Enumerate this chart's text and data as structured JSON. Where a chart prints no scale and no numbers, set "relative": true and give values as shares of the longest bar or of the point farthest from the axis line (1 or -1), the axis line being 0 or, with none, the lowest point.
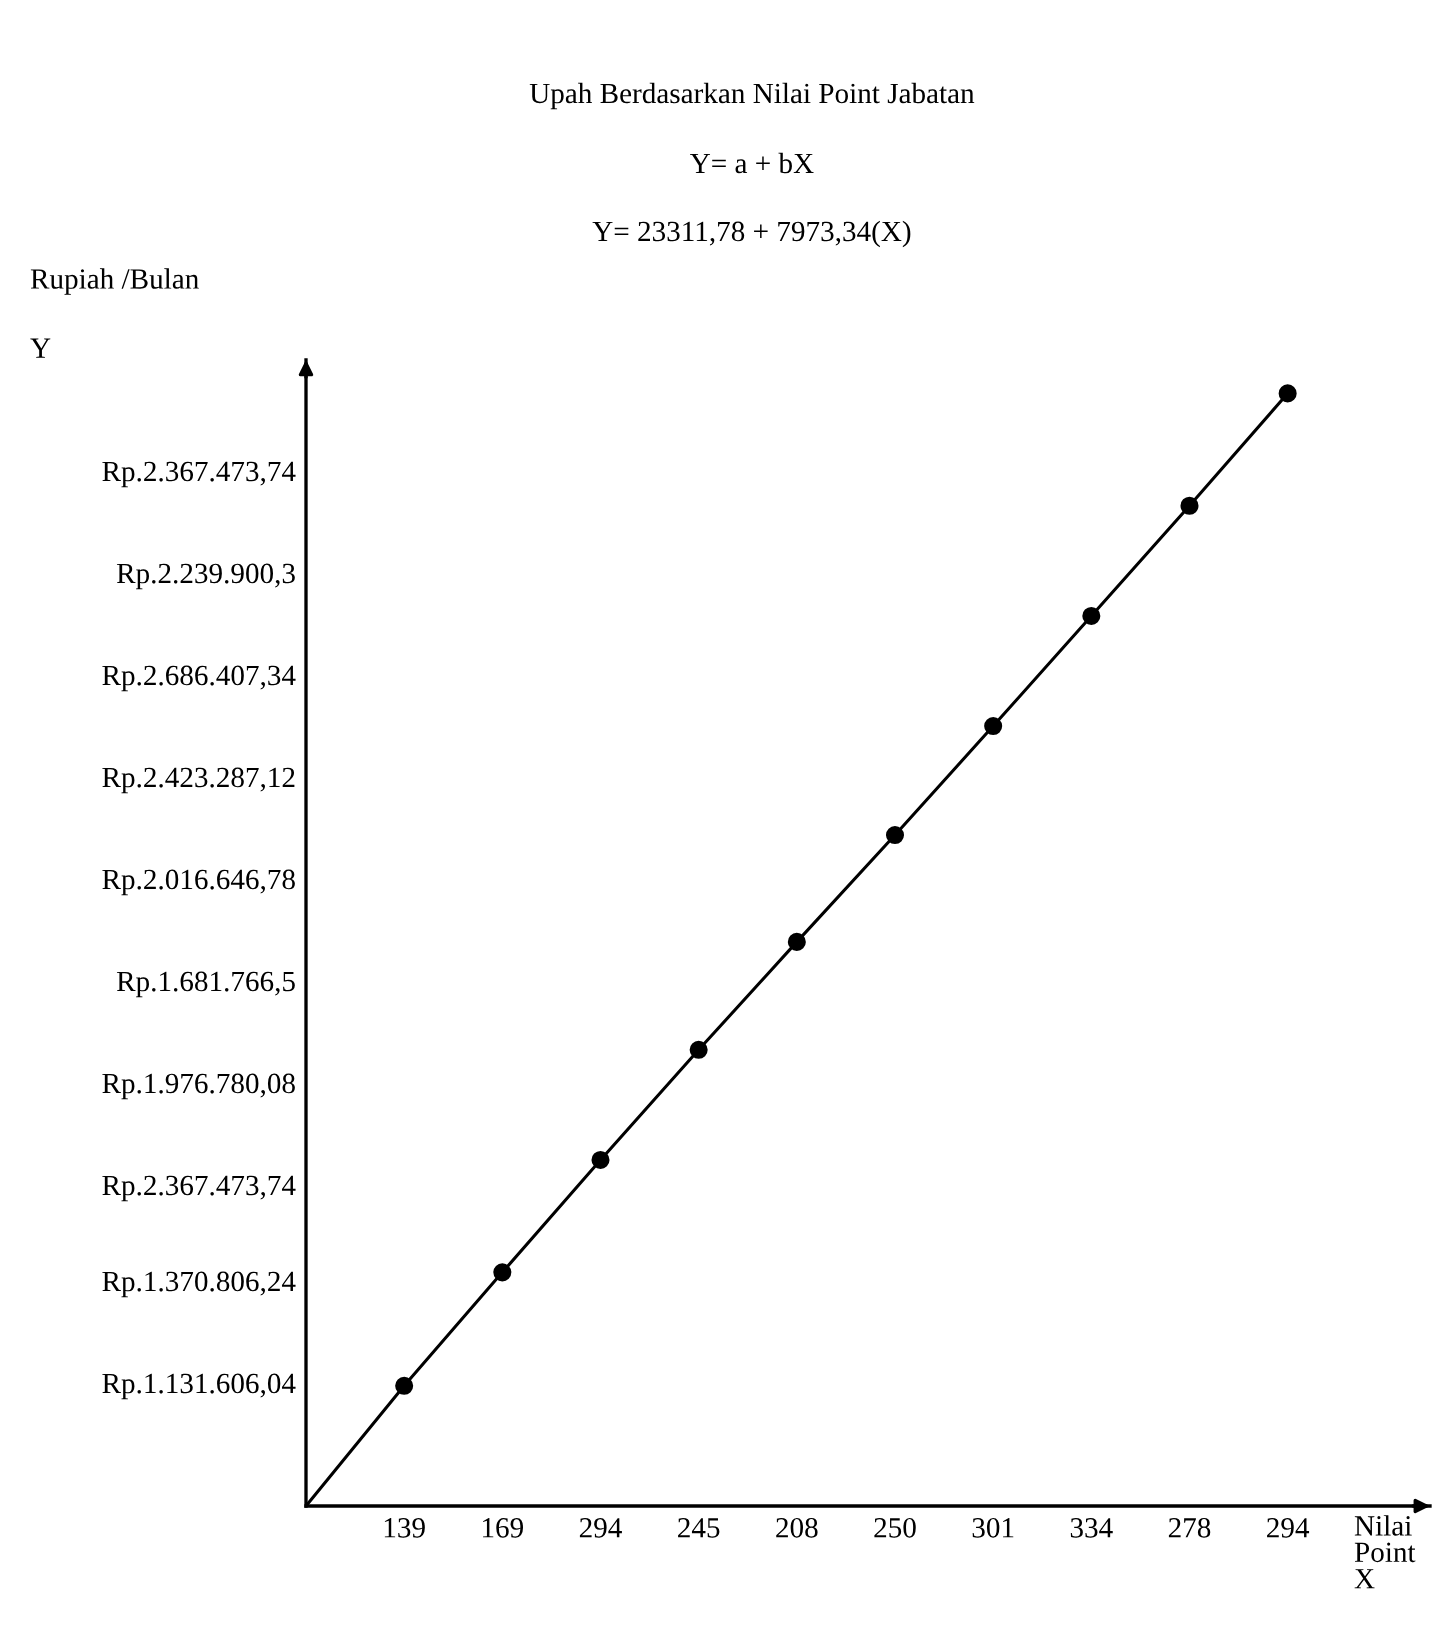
{
  "chart_data": {
    "type": "line",
    "title": "Upah Berdasarkan Nilai Point Jabatan",
    "subtitle": "Y= a + bX",
    "annotations": [
      "Y= 23311,78 + 7973,34(X)",
      "Rp.1.131.606,04",
      "Rp.1.370.806,24",
      "Rp.2.367.473,74",
      "Rp.1.976.780,08",
      "Rp.1.681.766,5",
      "Rp.2.016.646,78",
      "Rp.2.423.287,12",
      "Rp.2.686.407,34",
      "Rp.2.239.900,3",
      "Rp.2.367.473,74"
    ],
    "xlabel": "Nilai\nPoint\nX",
    "ylabel": "Rupiah /Bulan\n\nY",
    "categories": [
      null,
      "139",
      "169",
      "294",
      "245",
      "208",
      "250",
      "301",
      "334",
      "278",
      "294"
    ],
    "relative": true,
    "series": [
      {
        "color": "#000000",
        "values": [
          0,
          0.108,
          0.21,
          0.311,
          0.41,
          0.507,
          0.603,
          0.701,
          0.8,
          0.899,
          1.0
        ]
      }
    ],
    "marker": "circle",
    "line_style": "solid",
    "grid": false,
    "legend": false
  }
}
